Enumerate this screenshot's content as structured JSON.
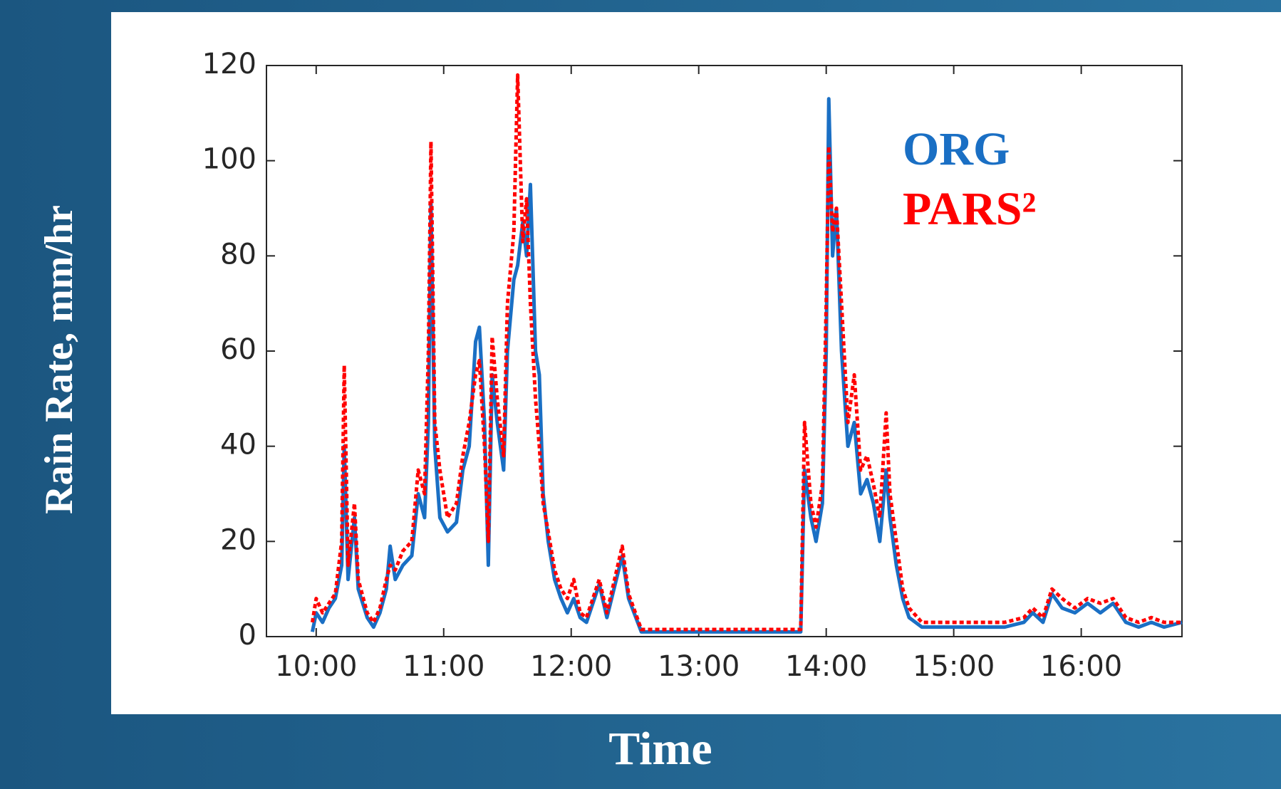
{
  "chart_data": {
    "type": "line",
    "x_label": "Time",
    "y_label": "Rain Rate, mm/hr",
    "x": [
      9.97,
      10.0,
      10.05,
      10.1,
      10.15,
      10.2,
      10.22,
      10.25,
      10.3,
      10.33,
      10.4,
      10.45,
      10.5,
      10.55,
      10.58,
      10.62,
      10.68,
      10.75,
      10.8,
      10.85,
      10.88,
      10.9,
      10.93,
      10.97,
      11.03,
      11.1,
      11.15,
      11.2,
      11.25,
      11.28,
      11.32,
      11.35,
      11.38,
      11.42,
      11.47,
      11.5,
      11.55,
      11.58,
      11.62,
      11.65,
      11.68,
      11.72,
      11.75,
      11.78,
      11.82,
      11.87,
      11.92,
      11.97,
      12.02,
      12.07,
      12.12,
      12.22,
      12.28,
      12.4,
      12.45,
      12.55,
      13.0,
      13.5,
      13.8,
      13.83,
      13.88,
      13.92,
      13.97,
      14.0,
      14.02,
      14.05,
      14.08,
      14.12,
      14.17,
      14.22,
      14.27,
      14.32,
      14.37,
      14.42,
      14.47,
      14.5,
      14.55,
      14.6,
      14.65,
      14.75,
      15.0,
      15.25,
      15.4,
      15.55,
      15.62,
      15.7,
      15.77,
      15.85,
      15.95,
      16.05,
      16.15,
      16.25,
      16.35,
      16.45,
      16.55,
      16.65,
      16.79
    ],
    "series": [
      {
        "name": "ORG",
        "color": "#1a6fc4",
        "dashed": false,
        "values": [
          1,
          5,
          3,
          6,
          8,
          15,
          40,
          12,
          25,
          10,
          4,
          2,
          5,
          10,
          19,
          12,
          15,
          17,
          30,
          25,
          45,
          91,
          40,
          25,
          22,
          24,
          35,
          40,
          62,
          65,
          45,
          15,
          55,
          45,
          35,
          60,
          75,
          78,
          87,
          80,
          95,
          60,
          55,
          30,
          20,
          12,
          8,
          5,
          8,
          4,
          3,
          11,
          4,
          17,
          8,
          1,
          1,
          1,
          1,
          35,
          25,
          20,
          28,
          60,
          113,
          80,
          90,
          60,
          40,
          45,
          30,
          33,
          28,
          20,
          35,
          25,
          15,
          8,
          4,
          2,
          2,
          2,
          2,
          3,
          5,
          3,
          9,
          6,
          5,
          7,
          5,
          7,
          3,
          2,
          3,
          2,
          3
        ]
      },
      {
        "name": "PARS²",
        "color": "#ff0000",
        "dashed": true,
        "values": [
          3,
          8,
          5,
          7,
          9,
          20,
          57,
          15,
          28,
          12,
          5,
          3,
          6,
          12,
          15,
          14,
          18,
          20,
          35,
          30,
          60,
          104,
          45,
          35,
          25,
          28,
          38,
          45,
          55,
          58,
          40,
          20,
          63,
          50,
          38,
          70,
          85,
          118,
          83,
          92,
          70,
          50,
          40,
          28,
          22,
          14,
          10,
          8,
          12,
          5,
          4,
          12,
          5,
          19,
          9,
          1.5,
          1.5,
          1.5,
          1.5,
          45,
          28,
          23,
          32,
          70,
          103,
          85,
          90,
          70,
          45,
          55,
          35,
          38,
          32,
          25,
          47,
          30,
          20,
          10,
          6,
          3,
          3,
          3,
          3,
          4,
          6,
          4,
          10,
          8,
          6,
          8,
          7,
          8,
          4,
          3,
          4,
          3,
          3
        ]
      }
    ],
    "xlim": [
      9.61,
      16.79
    ],
    "xticks": [
      {
        "value": 10,
        "label": "10:00"
      },
      {
        "value": 11,
        "label": "11:00"
      },
      {
        "value": 12,
        "label": "12:00"
      },
      {
        "value": 13,
        "label": "13:00"
      },
      {
        "value": 14,
        "label": "14:00"
      },
      {
        "value": 15,
        "label": "15:00"
      },
      {
        "value": 16,
        "label": "16:00"
      }
    ],
    "ylim": [
      0,
      120
    ],
    "yticks": [
      0,
      20,
      40,
      60,
      80,
      100,
      120
    ],
    "grid": false,
    "legend": "upper right"
  }
}
